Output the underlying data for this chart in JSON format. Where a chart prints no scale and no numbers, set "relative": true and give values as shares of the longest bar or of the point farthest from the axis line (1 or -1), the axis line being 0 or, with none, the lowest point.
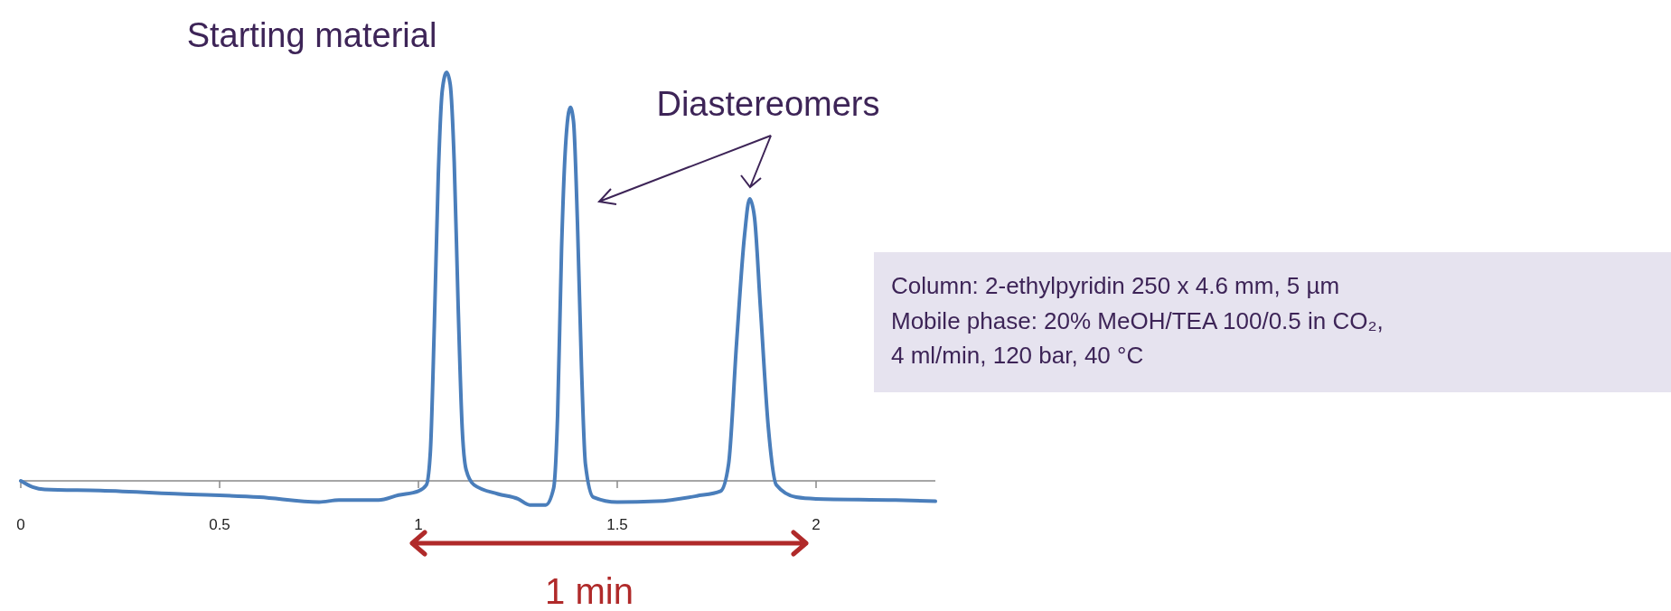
{
  "chart_data": {
    "type": "line",
    "relative": true,
    "x": [
      0,
      0.03,
      0.06,
      0.2,
      0.4,
      0.6,
      0.75,
      0.8,
      0.9,
      0.95,
      1.0,
      1.02,
      1.03,
      1.04,
      1.05,
      1.06,
      1.071,
      1.08,
      1.09,
      1.1,
      1.11,
      1.12,
      1.14,
      1.2,
      1.25,
      1.28,
      1.32,
      1.34,
      1.35,
      1.36,
      1.37,
      1.382,
      1.39,
      1.4,
      1.41,
      1.42,
      1.44,
      1.5,
      1.6,
      1.7,
      1.76,
      1.78,
      1.8,
      1.82,
      1.833,
      1.845,
      1.86,
      1.88,
      1.9,
      1.95,
      2.0,
      2.2,
      2.3
    ],
    "values": [
      0,
      -0.015,
      -0.021,
      -0.024,
      -0.032,
      -0.04,
      -0.052,
      -0.047,
      -0.047,
      -0.035,
      -0.025,
      -0.01,
      0.071,
      0.38,
      0.75,
      0.956,
      1,
      0.97,
      0.78,
      0.425,
      0.13,
      0.027,
      -0.01,
      -0.032,
      -0.044,
      -0.059,
      -0.059,
      -0.018,
      0.16,
      0.57,
      0.82,
      0.914,
      0.88,
      0.63,
      0.28,
      0.041,
      -0.04,
      -0.052,
      -0.05,
      -0.037,
      -0.025,
      0.041,
      0.336,
      0.6,
      0.69,
      0.646,
      0.425,
      0.13,
      -0.01,
      -0.04,
      -0.044,
      -0.047,
      -0.05
    ],
    "color": "#4a7ebb",
    "xlim": [
      0,
      2.3
    ],
    "xticks": [
      0,
      0.5,
      1,
      1.5,
      2
    ],
    "annotations": [
      "Starting material",
      "Diastereomers",
      "1 min",
      "Column: 2-ethylpyridin 250 x 4.6 mm, 5 µm",
      "Mobile phase: 20% MeOH/TEA 100/0.5 in CO₂,",
      "4 ml/min, 120 bar, 40 °C"
    ]
  }
}
